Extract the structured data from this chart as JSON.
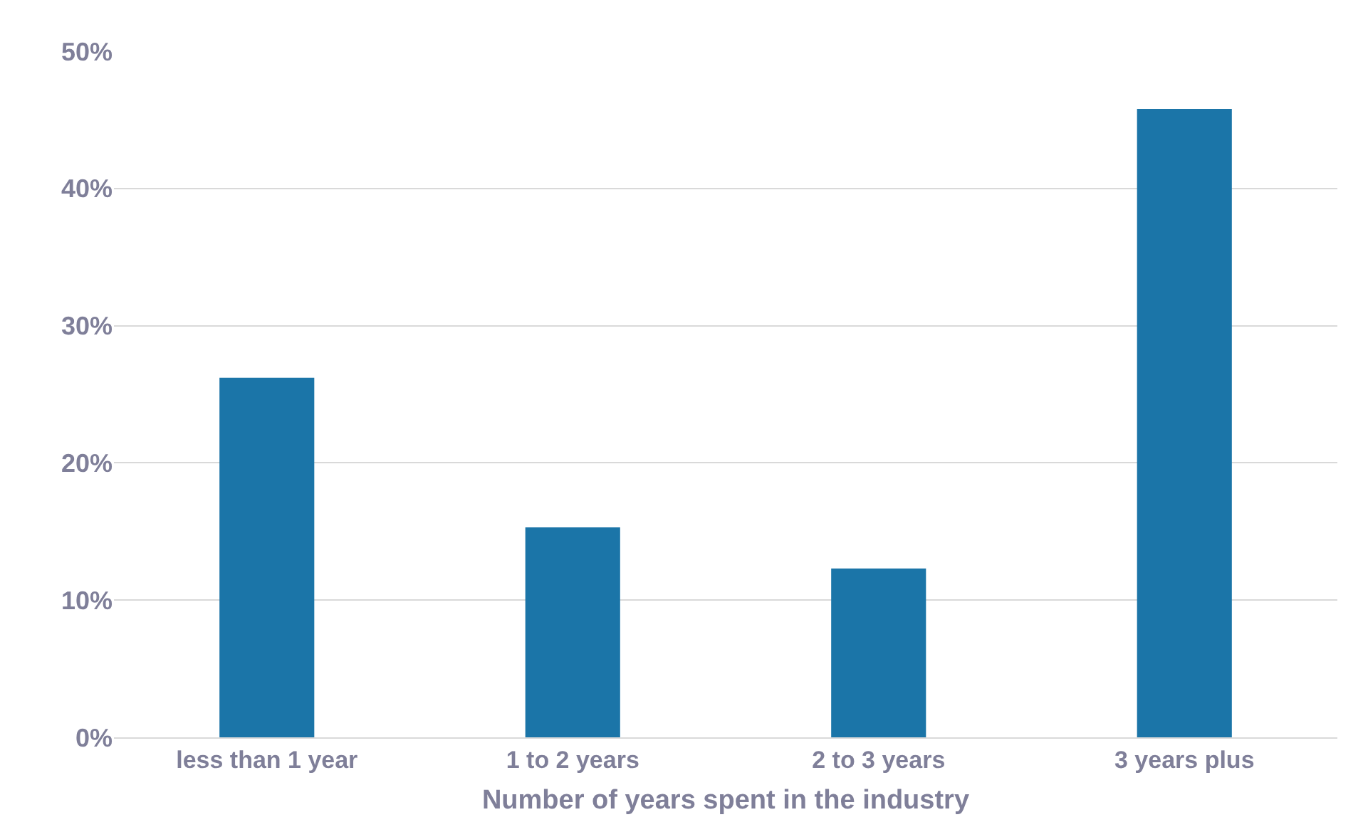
{
  "chart_data": {
    "type": "bar",
    "xlabel": "Number of years spent in the industry",
    "categories": [
      "less than 1 year",
      "1 to 2 years",
      "2 to 3 years",
      "3 years plus"
    ],
    "values": [
      26.2,
      15.3,
      12.3,
      45.8
    ],
    "color": "#1b75a8",
    "ylim": [
      0,
      50
    ],
    "yticks": [
      {
        "value": 0,
        "label": "0%"
      },
      {
        "value": 10,
        "label": "10%"
      },
      {
        "value": 20,
        "label": "20%"
      },
      {
        "value": 30,
        "label": "30%"
      },
      {
        "value": 40,
        "label": "40%"
      },
      {
        "value": 50,
        "label": "50%"
      }
    ],
    "grid": "y"
  }
}
